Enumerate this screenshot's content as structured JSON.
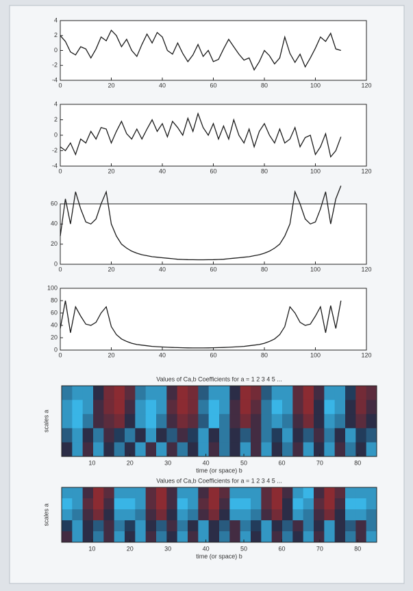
{
  "chart_data": [
    {
      "type": "line",
      "color": "#1a1a1a",
      "x": [
        0,
        2,
        4,
        6,
        8,
        10,
        12,
        14,
        16,
        18,
        20,
        22,
        24,
        26,
        28,
        30,
        32,
        34,
        36,
        38,
        40,
        42,
        44,
        46,
        48,
        50,
        52,
        54,
        56,
        58,
        60,
        62,
        64,
        66,
        68,
        70,
        72,
        74,
        76,
        78,
        80,
        82,
        84,
        86,
        88,
        90,
        92,
        94,
        96,
        98,
        100,
        102,
        104,
        106,
        108,
        110
      ],
      "values": [
        2.0,
        1.2,
        -0.2,
        -0.6,
        0.5,
        0.2,
        -1.0,
        0.2,
        1.8,
        1.3,
        2.7,
        2.0,
        0.5,
        1.5,
        0.0,
        -0.8,
        0.8,
        2.2,
        1.0,
        2.4,
        1.8,
        0.0,
        -0.5,
        1.0,
        -0.4,
        -1.5,
        -0.6,
        0.8,
        -0.8,
        0.0,
        -1.5,
        -1.2,
        0.2,
        1.5,
        0.5,
        -0.5,
        -1.3,
        -1.0,
        -2.6,
        -1.5,
        0.0,
        -0.7,
        -1.8,
        -1.0,
        1.8,
        -0.4,
        -1.6,
        -0.5,
        -2.2,
        -1.0,
        0.3,
        1.8,
        1.2,
        2.3,
        0.2,
        0.0
      ],
      "xlim": [
        0,
        120
      ],
      "xticks": [
        0,
        20,
        40,
        60,
        80,
        100,
        120
      ],
      "ylim": [
        -4,
        4
      ],
      "yticks": [
        -4,
        -2,
        0,
        2,
        4
      ]
    },
    {
      "type": "line",
      "color": "#1a1a1a",
      "x": [
        0,
        2,
        4,
        6,
        8,
        10,
        12,
        14,
        16,
        18,
        20,
        22,
        24,
        26,
        28,
        30,
        32,
        34,
        36,
        38,
        40,
        42,
        44,
        46,
        48,
        50,
        52,
        54,
        56,
        58,
        60,
        62,
        64,
        66,
        68,
        70,
        72,
        74,
        76,
        78,
        80,
        82,
        84,
        86,
        88,
        90,
        92,
        94,
        96,
        98,
        100,
        102,
        104,
        106,
        108,
        110
      ],
      "values": [
        -1.5,
        -2.0,
        -1.0,
        -2.5,
        -0.5,
        -1.0,
        0.5,
        -0.5,
        1.0,
        0.8,
        -1.0,
        0.5,
        1.8,
        0.2,
        -0.5,
        0.8,
        -0.5,
        0.8,
        2.0,
        0.5,
        1.5,
        -0.2,
        1.8,
        1.0,
        0.0,
        2.2,
        0.5,
        2.8,
        1.0,
        0.0,
        1.5,
        -0.5,
        1.2,
        -0.5,
        2.0,
        0.0,
        -1.0,
        0.8,
        -1.5,
        0.5,
        1.5,
        0.0,
        -1.0,
        0.8,
        -1.0,
        -0.5,
        1.0,
        -1.5,
        -0.3,
        0.0,
        -2.5,
        -1.5,
        0.2,
        -2.8,
        -2.0,
        -0.2
      ],
      "xlim": [
        0,
        120
      ],
      "xticks": [
        0,
        20,
        40,
        60,
        80,
        100,
        120
      ],
      "ylim": [
        -4,
        4
      ],
      "yticks": [
        -4,
        -2,
        0,
        2,
        4
      ]
    },
    {
      "type": "line",
      "color": "#1a1a1a",
      "x": [
        0,
        2,
        4,
        6,
        8,
        10,
        12,
        14,
        16,
        18,
        20,
        22,
        24,
        26,
        28,
        30,
        32,
        34,
        36,
        38,
        40,
        42,
        44,
        46,
        48,
        50,
        52,
        54,
        56,
        58,
        60,
        62,
        64,
        66,
        68,
        70,
        72,
        74,
        76,
        78,
        80,
        82,
        84,
        86,
        88,
        90,
        92,
        94,
        96,
        98,
        100,
        102,
        104,
        106,
        108,
        110
      ],
      "values": [
        28,
        65,
        40,
        72,
        55,
        42,
        40,
        45,
        60,
        72,
        40,
        28,
        20,
        16,
        13,
        11,
        9.5,
        8.5,
        7.5,
        7,
        6.5,
        6,
        5.5,
        5,
        4.8,
        4.6,
        4.5,
        4.4,
        4.4,
        4.5,
        4.6,
        4.8,
        5,
        5.5,
        6,
        6.5,
        7,
        7.5,
        8.5,
        9.5,
        11,
        13,
        16,
        20,
        28,
        40,
        72,
        60,
        45,
        40,
        42,
        55,
        72,
        40,
        65,
        78
      ],
      "xlim": [
        0,
        120
      ],
      "xticks": [
        0,
        20,
        40,
        60,
        80,
        100,
        120
      ],
      "ylim": [
        0,
        60
      ],
      "yticks": [
        0,
        20,
        40,
        60
      ]
    },
    {
      "type": "line",
      "color": "#1a1a1a",
      "x": [
        0,
        2,
        4,
        6,
        8,
        10,
        12,
        14,
        16,
        18,
        20,
        22,
        24,
        26,
        28,
        30,
        32,
        34,
        36,
        38,
        40,
        42,
        44,
        46,
        48,
        50,
        52,
        54,
        56,
        58,
        60,
        62,
        64,
        66,
        68,
        70,
        72,
        74,
        76,
        78,
        80,
        82,
        84,
        86,
        88,
        90,
        92,
        94,
        96,
        98,
        100,
        102,
        104,
        106,
        108,
        110
      ],
      "values": [
        35,
        80,
        28,
        70,
        55,
        42,
        40,
        45,
        60,
        70,
        38,
        25,
        18,
        14,
        11,
        9,
        8,
        7,
        6,
        5.5,
        5,
        4.5,
        4.2,
        4,
        3.8,
        3.6,
        3.5,
        3.5,
        3.5,
        3.6,
        3.8,
        4,
        4.2,
        4.5,
        5,
        5.5,
        6,
        7,
        8,
        9,
        11,
        14,
        18,
        25,
        38,
        70,
        60,
        45,
        40,
        42,
        55,
        70,
        28,
        72,
        35,
        80
      ],
      "xlim": [
        0,
        120
      ],
      "xticks": [
        0,
        20,
        40,
        60,
        80,
        100,
        120
      ],
      "ylim": [
        0,
        100
      ],
      "yticks": [
        0,
        20,
        40,
        60,
        80,
        100
      ]
    },
    {
      "type": "heatmap",
      "title": "Values of Ca,b Coefficients for a = 1 2 3 4 5 ...",
      "x_label": "time (or space) b",
      "y_label": "scales a",
      "colors": [
        "#39b5e6",
        "#1f2d4a",
        "#8b2b32"
      ],
      "zlim": [
        0,
        9
      ],
      "z": [
        [
          2,
          1,
          1,
          5,
          8,
          9,
          7,
          2,
          1,
          1,
          6,
          9,
          8,
          3,
          1,
          1,
          5,
          9,
          8,
          3,
          1,
          1,
          7,
          9,
          6,
          1,
          1,
          4,
          8,
          7
        ],
        [
          1,
          0,
          1,
          6,
          8,
          9,
          6,
          1,
          0,
          1,
          7,
          9,
          8,
          2,
          0,
          1,
          6,
          9,
          7,
          2,
          0,
          1,
          7,
          9,
          5,
          0,
          1,
          5,
          8,
          6
        ],
        [
          1,
          0,
          2,
          6,
          7,
          8,
          5,
          1,
          0,
          2,
          6,
          8,
          7,
          3,
          0,
          2,
          6,
          8,
          6,
          2,
          1,
          2,
          6,
          8,
          5,
          1,
          2,
          5,
          7,
          5
        ],
        [
          3,
          1,
          5,
          2,
          6,
          4,
          2,
          5,
          1,
          5,
          3,
          6,
          4,
          1,
          5,
          2,
          5,
          3,
          6,
          2,
          4,
          1,
          5,
          3,
          6,
          2,
          5,
          1,
          4,
          3
        ],
        [
          5,
          1,
          6,
          1,
          5,
          2,
          5,
          1,
          6,
          1,
          6,
          2,
          5,
          1,
          6,
          2,
          5,
          1,
          6,
          1,
          5,
          2,
          6,
          1,
          5,
          1,
          6,
          2,
          5,
          1
        ]
      ],
      "xlim": [
        2,
        85
      ],
      "xticks": [
        10,
        20,
        30,
        40,
        50,
        60,
        70,
        80
      ]
    },
    {
      "type": "heatmap",
      "title": "Values of Ca,b Coefficients for a = 1 2 3 4 5 ...",
      "x_label": "time (or space) b",
      "y_label": "scales a",
      "colors": [
        "#39b5e6",
        "#1f2d4a",
        "#8b2b32"
      ],
      "zlim": [
        0,
        9
      ],
      "z": [
        [
          1,
          1,
          6,
          9,
          7,
          1,
          1,
          1,
          7,
          9,
          6,
          1,
          1,
          6,
          9,
          7,
          1,
          1,
          1,
          7,
          9,
          6,
          1,
          0,
          6,
          9,
          7,
          1,
          1,
          1
        ],
        [
          0,
          1,
          7,
          9,
          6,
          0,
          0,
          1,
          7,
          9,
          6,
          0,
          1,
          7,
          9,
          6,
          0,
          0,
          1,
          7,
          9,
          5,
          0,
          1,
          7,
          9,
          6,
          0,
          0,
          1
        ],
        [
          1,
          2,
          6,
          8,
          5,
          1,
          1,
          2,
          6,
          8,
          5,
          1,
          2,
          6,
          8,
          5,
          1,
          1,
          2,
          6,
          8,
          5,
          1,
          2,
          6,
          8,
          5,
          1,
          1,
          2
        ],
        [
          4,
          1,
          5,
          3,
          6,
          2,
          4,
          1,
          5,
          3,
          6,
          2,
          5,
          1,
          5,
          3,
          6,
          2,
          4,
          1,
          5,
          3,
          6,
          2,
          5,
          1,
          5,
          3,
          6,
          2
        ],
        [
          6,
          1,
          5,
          2,
          6,
          1,
          5,
          1,
          6,
          2,
          5,
          1,
          6,
          1,
          5,
          2,
          6,
          1,
          5,
          1,
          6,
          2,
          5,
          1,
          6,
          1,
          5,
          2,
          6,
          1
        ]
      ],
      "xlim": [
        2,
        85
      ],
      "xticks": [
        10,
        20,
        30,
        40,
        50,
        60,
        70,
        80
      ]
    }
  ]
}
